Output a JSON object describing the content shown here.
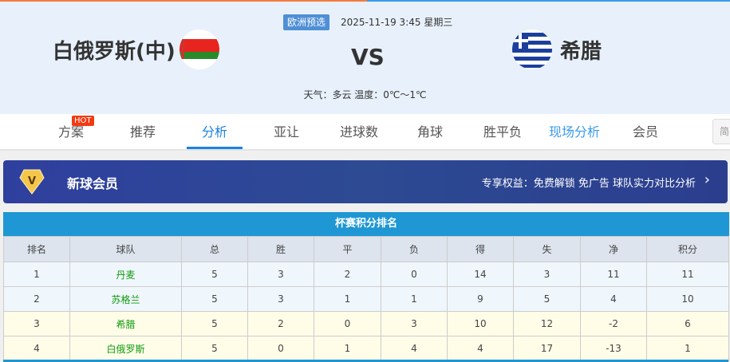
{
  "match": {
    "competition": "欧洲预选",
    "datetime": "2025-11-19 3:45 星期三",
    "home": "白俄罗斯(中)",
    "away": "希腊",
    "vs": "VS",
    "weather": "天气：多云 温度：0℃～1℃",
    "home_flag": "belarus-flag",
    "away_flag": "greece-flag"
  },
  "nav": {
    "items": [
      "方案",
      "推荐",
      "分析",
      "亚让",
      "进球数",
      "角球",
      "胜平负",
      "现场分析",
      "会员"
    ],
    "active": "分析",
    "hot_badge": "HOT",
    "lang": "简"
  },
  "banner": {
    "title": "新球会员",
    "perks": "专享权益：免费解锁 免广告 球队实力对比分析"
  },
  "standings": {
    "title": "杯赛积分排名",
    "headers": [
      "排名",
      "球队",
      "总",
      "胜",
      "平",
      "负",
      "得",
      "失",
      "净",
      "积分"
    ],
    "rows": [
      [
        "1",
        "丹麦",
        "5",
        "3",
        "2",
        "0",
        "14",
        "3",
        "11",
        "11"
      ],
      [
        "2",
        "苏格兰",
        "5",
        "3",
        "1",
        "1",
        "9",
        "5",
        "4",
        "10"
      ],
      [
        "3",
        "希腊",
        "5",
        "2",
        "0",
        "3",
        "10",
        "12",
        "-2",
        "6"
      ],
      [
        "4",
        "白俄罗斯",
        "5",
        "0",
        "1",
        "4",
        "4",
        "17",
        "-13",
        "1"
      ]
    ]
  },
  "colors": {
    "accent": "#1a82e0",
    "table_header": "#1e97d4",
    "team_name": "#109a10"
  }
}
